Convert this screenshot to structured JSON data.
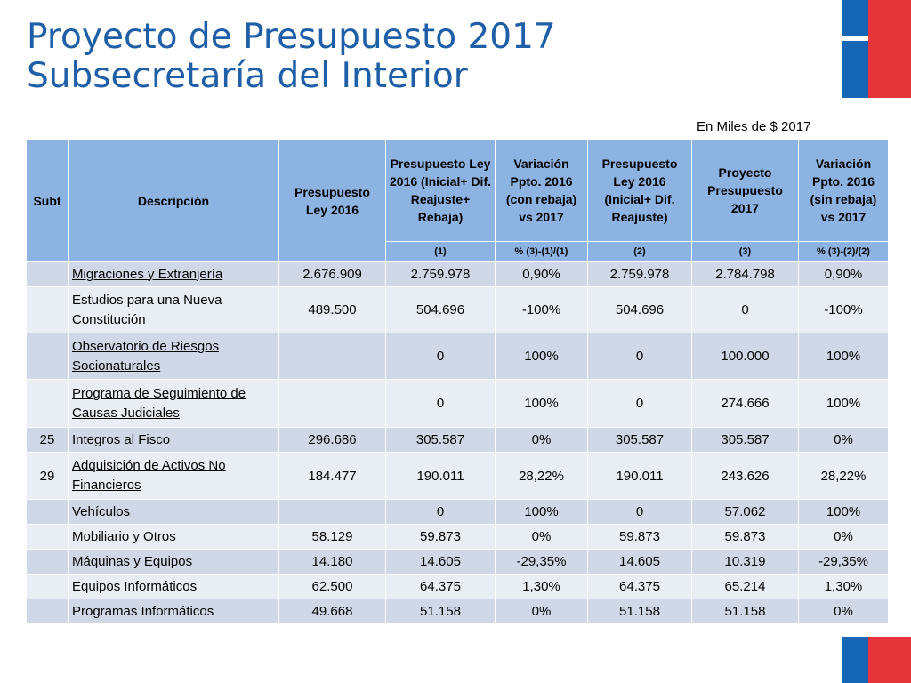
{
  "title": {
    "line1": "Proyecto de Presupuesto 2017",
    "line2": "Subsecretaría del Interior"
  },
  "units": "En Miles de $ 2017",
  "columns": {
    "subt": "Subt",
    "desc": "Descripción",
    "c1": "Presupuesto Ley 2016",
    "c2": "Presupuesto Ley 2016 (Inicial+ Dif. Reajuste+ Rebaja)",
    "c3": "Variación Ppto. 2016 (con rebaja) vs 2017",
    "c4": "Presupuesto Ley 2016 (Inicial+ Dif. Reajuste)",
    "c5": "Proyecto Presupuesto 2017",
    "c6": "Variación Ppto. 2016 (sin rebaja) vs 2017"
  },
  "subheaders": {
    "c2": "(1)",
    "c3": "% (3)-(1)/(1)",
    "c4": "(2)",
    "c5": "(3)",
    "c6": "% (3)-(2)/(2)"
  },
  "rows": [
    {
      "subt": "",
      "desc": "Migraciones y Extranjería",
      "underline": true,
      "c1": "2.676.909",
      "c2": "2.759.978",
      "c3": "0,90%",
      "c4": "2.759.978",
      "c5": "2.784.798",
      "c6": "0,90%"
    },
    {
      "subt": "",
      "desc": "Estudios para una Nueva Constitución",
      "underline": false,
      "c1": "489.500",
      "c2": "504.696",
      "c3": "-100%",
      "c4": "504.696",
      "c5": "0",
      "c6": "-100%"
    },
    {
      "subt": "",
      "desc": "Observatorio de Riesgos Socionaturales",
      "underline": true,
      "c1": "",
      "c2": "0",
      "c3": "100%",
      "c4": "0",
      "c5": "100.000",
      "c6": "100%"
    },
    {
      "subt": "",
      "desc": "Programa de Seguimiento de Causas Judiciales",
      "underline": true,
      "c1": "",
      "c2": "0",
      "c3": "100%",
      "c4": "0",
      "c5": "274.666",
      "c6": "100%"
    },
    {
      "subt": "25",
      "desc": "Integros al Fisco",
      "underline": false,
      "c1": "296.686",
      "c2": "305.587",
      "c3": "0%",
      "c4": "305.587",
      "c5": "305.587",
      "c6": "0%"
    },
    {
      "subt": "29",
      "desc": "Adquisición de Activos No Financieros",
      "underline": true,
      "c1": "184.477",
      "c2": "190.011",
      "c3": "28,22%",
      "c4": "190.011",
      "c5": "243.626",
      "c6": "28,22%"
    },
    {
      "subt": "",
      "desc": "Vehículos",
      "underline": false,
      "c1": "",
      "c2": "0",
      "c3": "100%",
      "c4": "0",
      "c5": "57.062",
      "c6": "100%"
    },
    {
      "subt": "",
      "desc": "Mobiliario  y Otros",
      "underline": false,
      "c1": "58.129",
      "c2": "59.873",
      "c3": "0%",
      "c4": "59.873",
      "c5": "59.873",
      "c6": "0%"
    },
    {
      "subt": "",
      "desc": "Máquinas y Equipos",
      "underline": false,
      "c1": "14.180",
      "c2": "14.605",
      "c3": "-29,35%",
      "c4": "14.605",
      "c5": "10.319",
      "c6": "-29,35%"
    },
    {
      "subt": "",
      "desc": "Equipos Informáticos",
      "underline": false,
      "c1": "62.500",
      "c2": "64.375",
      "c3": "1,30%",
      "c4": "64.375",
      "c5": "65.214",
      "c6": "1,30%"
    },
    {
      "subt": "",
      "desc": "Programas Informáticos",
      "underline": false,
      "c1": "49.668",
      "c2": "51.158",
      "c3": "0%",
      "c4": "51.158",
      "c5": "51.158",
      "c6": "0%"
    }
  ],
  "colors": {
    "title": "#1f5fa8",
    "header_bg": "#8db3e2",
    "row_light": "#e9edf4",
    "row_dark": "#d0d8e8",
    "flag_blue": "#1566b5",
    "flag_red": "#e5353b"
  }
}
